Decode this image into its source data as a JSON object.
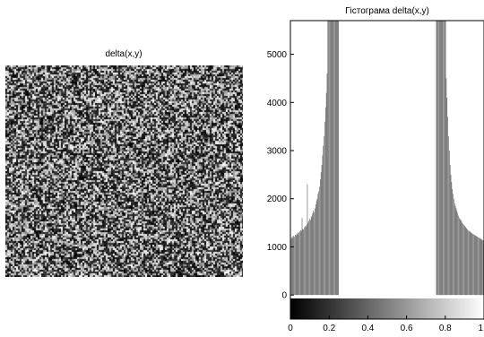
{
  "chart_data": [
    {
      "type": "heatmap",
      "title": "delta(x,y)",
      "colormap": "gray",
      "colors": {
        "low": "#000000",
        "high": "#ffffff"
      }
    },
    {
      "type": "bar",
      "title": "Гістограма delta(x,y)",
      "xlabel": "",
      "ylabel": "",
      "xlim": [
        0,
        1
      ],
      "ylim": [
        -500,
        5700
      ],
      "xticks": [
        "0",
        "0.2",
        "0.4",
        "0.6",
        "0.8",
        "1"
      ],
      "xtick_values": [
        0,
        0.2,
        0.4,
        0.6,
        0.8,
        1
      ],
      "yticks": [
        "0",
        "1000",
        "2000",
        "3000",
        "4000",
        "5000"
      ],
      "ytick_values": [
        0,
        1000,
        2000,
        3000,
        4000,
        5000
      ],
      "colorbar_range": [
        -500,
        0
      ],
      "x": [
        0.0,
        0.0039,
        0.0078,
        0.0118,
        0.0157,
        0.0196,
        0.0235,
        0.0275,
        0.0314,
        0.0353,
        0.0392,
        0.0431,
        0.0471,
        0.051,
        0.0549,
        0.0588,
        0.0627,
        0.0667,
        0.0706,
        0.0745,
        0.0784,
        0.0824,
        0.0863,
        0.0902,
        0.0941,
        0.098,
        0.102,
        0.1059,
        0.1098,
        0.1137,
        0.1176,
        0.1216,
        0.1255,
        0.1294,
        0.1333,
        0.1373,
        0.1412,
        0.1451,
        0.149,
        0.1529,
        0.1569,
        0.1608,
        0.1647,
        0.1686,
        0.1725,
        0.1765,
        0.1804,
        0.1843,
        0.1882,
        0.1922,
        0.1961,
        0.2,
        0.2039,
        0.2078,
        0.2118,
        0.2157,
        0.2196,
        0.2235,
        0.2275,
        0.2314,
        0.2353,
        0.2392,
        0.2431,
        0.2471,
        0.7529,
        0.7569,
        0.7608,
        0.7647,
        0.7686,
        0.7725,
        0.7765,
        0.7804,
        0.7843,
        0.7882,
        0.7922,
        0.7961,
        0.8,
        0.8039,
        0.8078,
        0.8118,
        0.8157,
        0.8196,
        0.8235,
        0.8275,
        0.8314,
        0.8353,
        0.8392,
        0.8431,
        0.8471,
        0.851,
        0.8549,
        0.8588,
        0.8627,
        0.8667,
        0.8706,
        0.8745,
        0.8784,
        0.8824,
        0.8863,
        0.8902,
        0.8941,
        0.898,
        0.902,
        0.9059,
        0.9098,
        0.9137,
        0.9176,
        0.9216,
        0.9255,
        0.9294,
        0.9333,
        0.9373,
        0.9412,
        0.9451,
        0.949,
        0.9529,
        0.9569,
        0.9608,
        0.9647,
        0.9686,
        0.9725,
        0.9765,
        0.9804,
        0.9843,
        0.9882,
        0.9922,
        0.9961
      ],
      "values": [
        1150,
        1180,
        1220,
        1190,
        1230,
        1210,
        1250,
        1240,
        1280,
        1260,
        1300,
        1290,
        1320,
        1350,
        1330,
        1600,
        1370,
        1360,
        1400,
        1430,
        1420,
        1460,
        2300,
        1500,
        1540,
        1580,
        1560,
        1620,
        1650,
        1700,
        1750,
        1720,
        1800,
        1880,
        1950,
        2000,
        2100,
        2150,
        2250,
        2400,
        2550,
        2700,
        2900,
        3100,
        3300,
        3600,
        3900,
        4200,
        4600,
        5700,
        5700,
        5700,
        5700,
        5700,
        5700,
        5700,
        5700,
        5700,
        5700,
        5700,
        5700,
        5700,
        5700,
        5700,
        5700,
        5700,
        5700,
        5700,
        5700,
        5700,
        5700,
        5700,
        5700,
        5700,
        5700,
        5700,
        5700,
        4500,
        4100,
        3700,
        3300,
        3000,
        2700,
        2500,
        2350,
        2200,
        2100,
        2000,
        1900,
        1850,
        1800,
        1750,
        1700,
        1650,
        1600,
        1580,
        1560,
        1540,
        1500,
        1480,
        1460,
        1440,
        1420,
        1400,
        1380,
        1360,
        1340,
        1330,
        1320,
        1310,
        1290,
        1280,
        1270,
        1260,
        1250,
        1240,
        1230,
        1220,
        1210,
        1200,
        1190,
        1180,
        1170,
        1160,
        1150,
        1140,
        1130
      ]
    }
  ]
}
